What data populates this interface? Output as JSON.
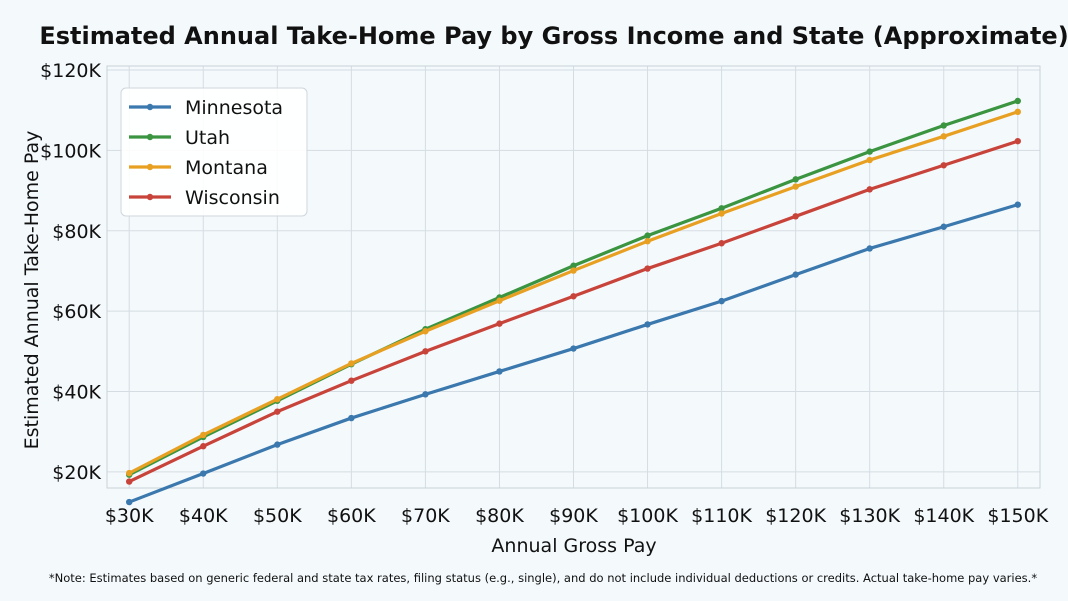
{
  "chart_data": {
    "type": "line",
    "title": "Estimated Annual Take-Home Pay by Gross Income and State (Approximate)",
    "xlabel": "Annual Gross Pay",
    "ylabel": "Estimated Annual Take-Home Pay",
    "x": [
      30000,
      40000,
      50000,
      60000,
      70000,
      80000,
      90000,
      100000,
      110000,
      120000,
      130000,
      140000,
      150000
    ],
    "x_tick_labels": [
      "$30K",
      "$40K",
      "$50K",
      "$60K",
      "$70K",
      "$80K",
      "$90K",
      "$100K",
      "$110K",
      "$120K",
      "$130K",
      "$140K",
      "$150K"
    ],
    "y_ticks": [
      20000,
      40000,
      60000,
      80000,
      100000,
      120000
    ],
    "y_tick_labels": [
      "$20K",
      "$40K",
      "$60K",
      "$80K",
      "$100K",
      "$120K"
    ],
    "xlim": [
      27000,
      153000
    ],
    "ylim": [
      16000,
      121000
    ],
    "grid": true,
    "legend_position": "top-left",
    "series": [
      {
        "name": "Minnesota",
        "color": "#3a78ad",
        "values": [
          12500,
          19600,
          26800,
          33400,
          39300,
          45000,
          50700,
          56700,
          62500,
          69100,
          75600,
          81000,
          86500
        ]
      },
      {
        "name": "Utah",
        "color": "#3a9440",
        "values": [
          19300,
          28700,
          37700,
          46800,
          55500,
          63400,
          71300,
          78800,
          85600,
          92800,
          99700,
          106200,
          112300
        ]
      },
      {
        "name": "Montana",
        "color": "#e8a022",
        "values": [
          19700,
          29200,
          38100,
          47000,
          55000,
          62600,
          70100,
          77400,
          84300,
          91000,
          97600,
          103500,
          109600
        ]
      },
      {
        "name": "Wisconsin",
        "color": "#c8443a",
        "values": [
          17600,
          26400,
          35000,
          42700,
          50000,
          56900,
          63700,
          70600,
          76900,
          83600,
          90300,
          96300,
          102300
        ]
      }
    ],
    "note": "*Note: Estimates based on generic federal and state tax rates, filing status (e.g., single), and do not include individual deductions or credits. Actual take-home pay varies.*"
  }
}
